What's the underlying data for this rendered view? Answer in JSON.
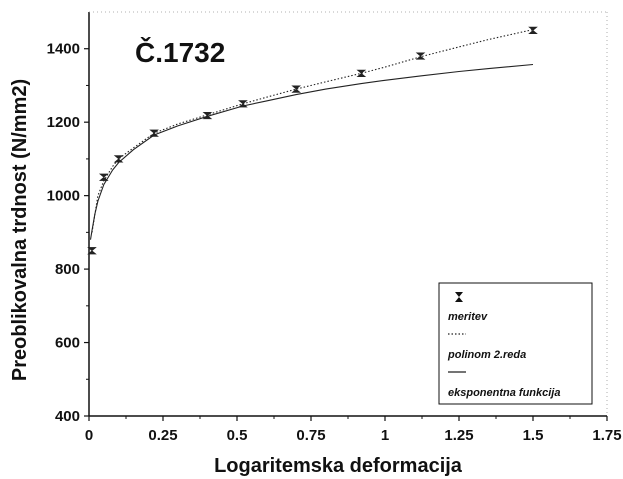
{
  "chart_data": {
    "type": "scatter",
    "title": "Č.1732",
    "xlabel": "Logaritemska deformacija",
    "ylabel": "Preoblikovalna trdnost (N/mm2)",
    "xlim": [
      0,
      1.75
    ],
    "ylim": [
      400,
      1500
    ],
    "x_ticks": [
      "0",
      "0.25",
      "0.5",
      "0.75",
      "1",
      "1.25",
      "1.5",
      "1.75"
    ],
    "y_ticks": [
      "400",
      "600",
      "800",
      "1000",
      "1200",
      "1400"
    ],
    "x_tick_values": [
      0,
      0.25,
      0.5,
      0.75,
      1,
      1.25,
      1.5,
      1.75
    ],
    "y_tick_values": [
      400,
      600,
      800,
      1000,
      1200,
      1400
    ],
    "grid": false,
    "legend_position": "bottom-right",
    "series": [
      {
        "name": "meritev",
        "kind": "points-with-errorbars",
        "x": [
          0.01,
          0.05,
          0.1,
          0.22,
          0.4,
          0.52,
          0.7,
          0.92,
          1.12,
          1.5
        ],
        "y": [
          850,
          1050,
          1100,
          1170,
          1218,
          1250,
          1290,
          1333,
          1380,
          1450
        ],
        "error": 9
      },
      {
        "name": "polinom 2.reda",
        "kind": "line",
        "style": "dotted",
        "x": [
          0.01,
          0.03,
          0.05,
          0.08,
          0.1,
          0.15,
          0.22,
          0.3,
          0.4,
          0.52,
          0.6,
          0.7,
          0.8,
          0.92,
          1.0,
          1.12,
          1.25,
          1.35,
          1.5
        ],
        "y": [
          900,
          1000,
          1040,
          1080,
          1100,
          1130,
          1170,
          1195,
          1220,
          1250,
          1268,
          1290,
          1310,
          1333,
          1350,
          1378,
          1405,
          1425,
          1452
        ]
      },
      {
        "name": "eksponentna funkcija",
        "kind": "line",
        "style": "solid",
        "x": [
          0.005,
          0.01,
          0.02,
          0.03,
          0.05,
          0.08,
          0.1,
          0.15,
          0.22,
          0.3,
          0.4,
          0.52,
          0.6,
          0.7,
          0.8,
          0.92,
          1.0,
          1.12,
          1.25,
          1.35,
          1.5
        ],
        "y": [
          880,
          905,
          950,
          985,
          1030,
          1070,
          1090,
          1125,
          1165,
          1190,
          1216,
          1244,
          1258,
          1275,
          1290,
          1305,
          1314,
          1326,
          1338,
          1346,
          1357
        ]
      }
    ]
  },
  "colors": {
    "axis": "#111111",
    "series": "#222222"
  }
}
